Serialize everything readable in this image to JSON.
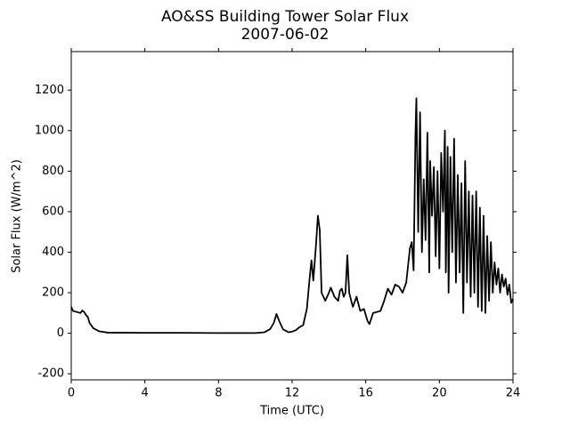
{
  "chart_data": {
    "type": "line",
    "title": "AO&SS Building Tower Solar Flux",
    "subtitle": "2007-06-02",
    "xlabel": "Time (UTC)",
    "ylabel": "Solar Flux (W/m^2)",
    "color": "#000000",
    "xlim": [
      0,
      24
    ],
    "xticks": [
      0,
      4,
      8,
      12,
      16,
      20,
      24
    ],
    "ylim": [
      -230,
      1390
    ],
    "yticks": [
      -200,
      0,
      200,
      400,
      600,
      800,
      1000,
      1200
    ],
    "x": [
      0,
      0.1,
      0.3,
      0.5,
      0.6,
      0.7,
      0.8,
      0.9,
      1.0,
      1.2,
      1.5,
      2,
      4,
      6,
      8,
      10,
      10.5,
      10.8,
      11,
      11.15,
      11.3,
      11.5,
      11.8,
      12,
      12.2,
      12.4,
      12.6,
      12.8,
      12.95,
      13.05,
      13.15,
      13.3,
      13.4,
      13.5,
      13.6,
      13.8,
      14,
      14.1,
      14.3,
      14.5,
      14.6,
      14.7,
      14.8,
      14.9,
      15,
      15.1,
      15.3,
      15.5,
      15.7,
      15.9,
      16.1,
      16.2,
      16.4,
      16.8,
      17,
      17.2,
      17.4,
      17.6,
      17.8,
      18,
      18.2,
      18.4,
      18.5,
      18.6,
      18.7,
      18.75,
      18.85,
      18.95,
      19.05,
      19.15,
      19.25,
      19.35,
      19.45,
      19.5,
      19.6,
      19.7,
      19.8,
      19.9,
      20,
      20.1,
      20.2,
      20.3,
      20.35,
      20.45,
      20.5,
      20.6,
      20.7,
      20.8,
      20.9,
      21,
      21.1,
      21.2,
      21.3,
      21.4,
      21.5,
      21.6,
      21.7,
      21.8,
      21.9,
      22,
      22.1,
      22.2,
      22.3,
      22.4,
      22.5,
      22.6,
      22.7,
      22.8,
      22.9,
      23,
      23.1,
      23.2,
      23.3,
      23.4,
      23.5,
      23.6,
      23.7,
      23.8,
      23.9,
      24
    ],
    "values": [
      130,
      110,
      105,
      100,
      112,
      105,
      90,
      80,
      50,
      25,
      10,
      3,
      2,
      2,
      1,
      1,
      5,
      20,
      50,
      95,
      60,
      20,
      5,
      8,
      15,
      30,
      40,
      120,
      270,
      360,
      260,
      440,
      580,
      510,
      200,
      160,
      200,
      225,
      180,
      160,
      210,
      220,
      180,
      200,
      385,
      200,
      130,
      180,
      110,
      120,
      60,
      45,
      100,
      110,
      160,
      220,
      190,
      240,
      230,
      200,
      250,
      420,
      450,
      310,
      980,
      1160,
      500,
      1090,
      400,
      760,
      460,
      990,
      300,
      850,
      580,
      820,
      380,
      800,
      320,
      890,
      600,
      1000,
      300,
      920,
      200,
      870,
      400,
      960,
      250,
      780,
      300,
      740,
      100,
      850,
      250,
      700,
      180,
      680,
      200,
      700,
      130,
      620,
      110,
      580,
      100,
      480,
      160,
      450,
      200,
      350,
      240,
      320,
      200,
      290,
      230,
      270,
      190,
      240,
      150,
      170
    ]
  }
}
